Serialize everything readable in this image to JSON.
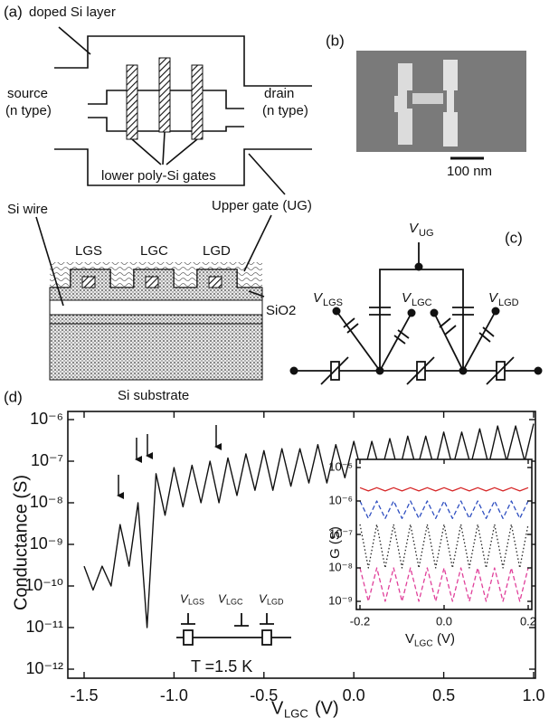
{
  "panel_labels": [
    "(a)",
    "(b)",
    "(c)",
    "(d)"
  ],
  "panel_a": {
    "doped_layer": "doped Si layer",
    "source": [
      "source",
      "(n type)"
    ],
    "drain": [
      "drain",
      "(n type)"
    ],
    "gates": "lower poly-Si gates",
    "wire": "Si wire",
    "upper_gate": "Upper gate (UG)",
    "gate_names": [
      "LGS",
      "LGC",
      "LGD"
    ],
    "oxide": "SiO2",
    "substrate": "Si substrate"
  },
  "panel_b": {
    "scale_bar": "100 nm"
  },
  "panel_c": {
    "voltages": [
      {
        "symbol": "V",
        "subscript": "UG"
      },
      {
        "symbol": "V",
        "subscript": "LGS"
      },
      {
        "symbol": "V",
        "subscript": "LGC"
      },
      {
        "symbol": "V",
        "subscript": "LGD"
      }
    ]
  },
  "chart_data": [
    {
      "type": "line",
      "y_label": "Conductance (S)",
      "x_label": {
        "symbol": "V",
        "subscript": "LGC",
        "unit": "(V)"
      },
      "y_scale": "log",
      "color": "#111111",
      "xlim": [
        -1.5,
        1.0
      ],
      "ylim": [
        1e-12,
        1e-06
      ],
      "xticks": [
        -1.5,
        {
          "value": -1,
          "label": "-1.0"
        },
        -0.5,
        {
          "value": 0,
          "label": "0.0"
        },
        0.5,
        {
          "value": 1,
          "label": "1.0"
        }
      ],
      "yticks": [
        {
          "value": 1e-12,
          "label": "10⁻¹²"
        },
        {
          "value": 1e-11,
          "label": "10⁻¹¹"
        },
        {
          "value": 1e-10,
          "label": "10⁻¹⁰"
        },
        {
          "value": 1e-09,
          "label": "10⁻⁹"
        },
        {
          "value": 1e-08,
          "label": "10⁻⁸"
        },
        {
          "value": 1e-07,
          "label": "10⁻⁷"
        },
        {
          "value": 1e-06,
          "label": "10⁻⁶"
        }
      ],
      "x": [
        -1.5,
        -1.45,
        -1.4,
        -1.35,
        -1.3,
        -1.25,
        -1.2,
        -1.15,
        -1.1,
        -1.05,
        -1.0,
        -0.95,
        -0.9,
        -0.85,
        -0.8,
        -0.75,
        -0.7,
        -0.65,
        -0.6,
        -0.55,
        -0.5,
        -0.45,
        -0.4,
        -0.35,
        -0.3,
        -0.25,
        -0.2,
        -0.15,
        -0.1,
        -0.05,
        0.0,
        0.05,
        0.1,
        0.15,
        0.2,
        0.25,
        0.3,
        0.35,
        0.4,
        0.45,
        0.5,
        0.55,
        0.6,
        0.65,
        0.7,
        0.75,
        0.8,
        0.85,
        0.9,
        0.95,
        1.0
      ],
      "values": [
        3e-10,
        8e-11,
        3e-10,
        1e-10,
        3e-09,
        3e-10,
        1e-08,
        1e-11,
        5e-08,
        5e-09,
        7e-08,
        8e-09,
        8e-08,
        1e-08,
        1e-07,
        1e-08,
        1.2e-07,
        1.5e-08,
        1.5e-07,
        2e-08,
        1.8e-07,
        2e-08,
        2e-07,
        2.5e-08,
        2e-07,
        3e-08,
        2.5e-07,
        3e-08,
        2.5e-07,
        4e-08,
        3e-07,
        4e-08,
        3e-07,
        5e-08,
        3.5e-07,
        5e-08,
        4e-07,
        6e-08,
        4e-07,
        6e-08,
        5e-07,
        7e-08,
        5e-07,
        8e-08,
        6e-07,
        8e-08,
        7e-07,
        1e-07,
        7e-07,
        1e-07,
        8e-07
      ],
      "annotations": {
        "temperature": "T =1.5 K",
        "circuit_labels": [
          {
            "symbol": "V",
            "subscript": "LGS"
          },
          {
            "symbol": "V",
            "subscript": "LGC"
          },
          {
            "symbol": "V",
            "subscript": "LGD"
          }
        ]
      }
    },
    {
      "type": "line",
      "y_label": "G (S)",
      "x_label": {
        "symbol": "V",
        "subscript": "LGC",
        "unit": "(V)"
      },
      "y_scale": "log",
      "xlim": [
        -0.2,
        0.2
      ],
      "ylim": [
        1e-09,
        1e-05
      ],
      "xticks": [
        -0.2,
        {
          "value": 0,
          "label": "0.0"
        },
        0.2
      ],
      "yticks": [
        {
          "value": 1e-09,
          "label": "10⁻⁹"
        },
        {
          "value": 1e-08,
          "label": "10⁻⁸"
        },
        {
          "value": 1e-07,
          "label": "10⁻⁷"
        },
        {
          "value": 1e-06,
          "label": "10⁻⁶"
        },
        {
          "value": 1e-05,
          "label": "10⁻⁵"
        }
      ],
      "x": [
        -0.2,
        -0.18,
        -0.16,
        -0.14,
        -0.12,
        -0.1,
        -0.08,
        -0.06,
        -0.04,
        -0.02,
        0.0,
        0.02,
        0.04,
        0.06,
        0.08,
        0.1,
        0.12,
        0.14,
        0.16,
        0.18,
        0.2
      ],
      "series": [
        {
          "color": "#d62728",
          "line_style": "solid",
          "values": [
            2.5e-06,
            2e-06,
            2.5e-06,
            2e-06,
            2.5e-06,
            2e-06,
            2.5e-06,
            2e-06,
            2.5e-06,
            2e-06,
            2.5e-06,
            2e-06,
            2.5e-06,
            2e-06,
            2.5e-06,
            2e-06,
            2.5e-06,
            2e-06,
            2.5e-06,
            2e-06,
            2.5e-06
          ]
        },
        {
          "color": "#2f4fc0",
          "line_style": "dashed",
          "values": [
            1e-06,
            3e-07,
            1e-06,
            3e-07,
            1e-06,
            3e-07,
            1e-06,
            3e-07,
            1e-06,
            3e-07,
            1e-06,
            3e-07,
            1e-06,
            3e-07,
            1e-06,
            3e-07,
            1e-06,
            3e-07,
            1e-06,
            3e-07,
            1e-06
          ]
        },
        {
          "color": "#222222",
          "line_style": "dotted",
          "values": [
            2e-07,
            1e-08,
            2e-07,
            1e-08,
            2e-07,
            1e-08,
            2e-07,
            1e-08,
            2e-07,
            1e-08,
            2e-07,
            1e-08,
            2e-07,
            1e-08,
            2e-07,
            1e-08,
            2e-07,
            1e-08,
            2e-07,
            1e-08,
            2e-07
          ]
        },
        {
          "color": "#e0409a",
          "line_style": "dashed",
          "values": [
            1e-08,
            1e-09,
            1e-08,
            1e-09,
            1e-08,
            1e-09,
            1e-08,
            1e-09,
            1e-08,
            1e-09,
            1e-08,
            1e-09,
            1e-08,
            1e-09,
            1e-08,
            1e-09,
            1e-08,
            1e-09,
            1e-08,
            1e-09,
            1e-08
          ]
        }
      ]
    }
  ]
}
